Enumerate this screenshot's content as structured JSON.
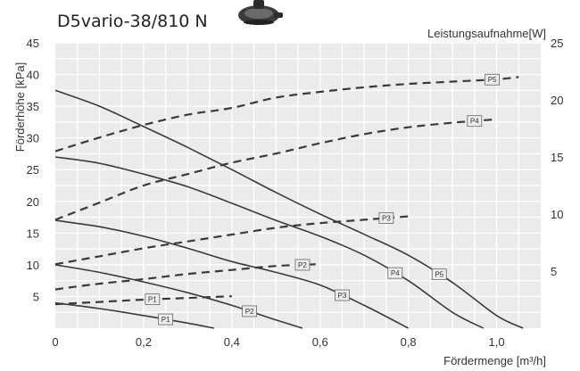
{
  "chart_data": {
    "type": "line",
    "title": "D5vario-38/810 N",
    "xlabel": "Fördermenge [m³/h]",
    "ylabel_left": "Förderhöhe [kPa]",
    "ylabel_right": "Leistungsaufnahme[W]",
    "xlim": [
      0,
      1.1
    ],
    "ylim_left": [
      0,
      45
    ],
    "ylim_right": [
      0,
      25
    ],
    "x_ticks": [
      0,
      0.2,
      0.4,
      0.6,
      0.8,
      1.0
    ],
    "x_tick_labels": [
      "0",
      "0,2",
      "0,4",
      "0,6",
      "0,8",
      "1,0"
    ],
    "y_left_ticks": [
      5,
      10,
      15,
      20,
      25,
      30,
      35,
      40,
      45
    ],
    "y_left_tick_labels": [
      "5",
      "10",
      "15",
      "20",
      "25",
      "30",
      "35",
      "40",
      "45"
    ],
    "y_right_ticks": [
      5,
      10,
      15,
      20,
      25
    ],
    "y_right_tick_labels": [
      "5",
      "10",
      "15",
      "20",
      "25"
    ],
    "grid": true,
    "series": [
      {
        "name": "P1",
        "kind": "head",
        "axis": "left",
        "style": "solid",
        "label_at": 0.25,
        "x": [
          0,
          0.1,
          0.2,
          0.3,
          0.36
        ],
        "y": [
          4,
          3.1,
          2,
          0.8,
          0
        ]
      },
      {
        "name": "P2",
        "kind": "head",
        "axis": "left",
        "style": "solid",
        "label_at": 0.44,
        "x": [
          0,
          0.1,
          0.2,
          0.3,
          0.4,
          0.5,
          0.56
        ],
        "y": [
          10,
          8.8,
          7.3,
          5.6,
          3.6,
          1.3,
          0
        ]
      },
      {
        "name": "P3",
        "kind": "head",
        "axis": "left",
        "style": "solid",
        "label_at": 0.65,
        "x": [
          0,
          0.1,
          0.2,
          0.3,
          0.4,
          0.5,
          0.6,
          0.7,
          0.8
        ],
        "y": [
          17,
          16,
          14.5,
          12.6,
          10.5,
          8.8,
          6.8,
          3.6,
          0
        ]
      },
      {
        "name": "P4",
        "kind": "head",
        "axis": "left",
        "style": "solid",
        "label_at": 0.77,
        "x": [
          0,
          0.1,
          0.2,
          0.3,
          0.4,
          0.5,
          0.6,
          0.7,
          0.8,
          0.9,
          0.97
        ],
        "y": [
          27,
          26,
          24.3,
          22.3,
          19.7,
          17,
          14.5,
          11.5,
          7.5,
          2.5,
          0
        ]
      },
      {
        "name": "P5",
        "kind": "head",
        "axis": "left",
        "style": "solid",
        "label_at": 0.87,
        "x": [
          0,
          0.1,
          0.2,
          0.3,
          0.4,
          0.5,
          0.6,
          0.7,
          0.8,
          0.9,
          1.0,
          1.06
        ],
        "y": [
          37.5,
          35,
          31.8,
          28.5,
          25,
          21.4,
          18,
          14.8,
          11.5,
          7.2,
          2,
          0
        ]
      },
      {
        "name": "P1",
        "kind": "power",
        "axis": "right",
        "style": "dashed",
        "label_at": 0.22,
        "x": [
          0,
          0.1,
          0.2,
          0.3,
          0.4
        ],
        "y": [
          2.1,
          2.3,
          2.5,
          2.65,
          2.8
        ]
      },
      {
        "name": "P2",
        "kind": "power",
        "axis": "right",
        "style": "dashed",
        "label_at": 0.56,
        "x": [
          0,
          0.1,
          0.2,
          0.3,
          0.4,
          0.5,
          0.59
        ],
        "y": [
          3.4,
          3.9,
          4.3,
          4.75,
          5.1,
          5.45,
          5.6
        ]
      },
      {
        "name": "P3",
        "kind": "power",
        "axis": "right",
        "style": "dashed",
        "label_at": 0.75,
        "x": [
          0,
          0.1,
          0.2,
          0.3,
          0.4,
          0.5,
          0.6,
          0.7,
          0.8
        ],
        "y": [
          5.6,
          6.3,
          7,
          7.6,
          8.2,
          8.8,
          9.2,
          9.5,
          9.8
        ]
      },
      {
        "name": "P4",
        "kind": "power",
        "axis": "right",
        "style": "dashed",
        "label_at": 0.95,
        "x": [
          0,
          0.1,
          0.2,
          0.3,
          0.4,
          0.5,
          0.6,
          0.7,
          0.8,
          0.9,
          1.0
        ],
        "y": [
          9.5,
          11,
          12.5,
          13.5,
          14.5,
          15.3,
          16.2,
          17,
          17.6,
          18,
          18.3
        ]
      },
      {
        "name": "P5",
        "kind": "power",
        "axis": "right",
        "style": "dashed",
        "label_at": 0.99,
        "x": [
          0,
          0.1,
          0.2,
          0.3,
          0.4,
          0.5,
          0.6,
          0.7,
          0.8,
          0.9,
          1.0,
          1.05
        ],
        "y": [
          15.5,
          16.7,
          17.8,
          18.7,
          19.3,
          20.2,
          20.7,
          21.1,
          21.4,
          21.6,
          21.8,
          22
        ]
      }
    ]
  },
  "colors": {
    "curve": "#3a3a3a",
    "grid": "#ffffff",
    "plot_bg": "#ebebeb",
    "label_bg": "#ececec"
  },
  "icons": {
    "pump": "pump-icon"
  }
}
